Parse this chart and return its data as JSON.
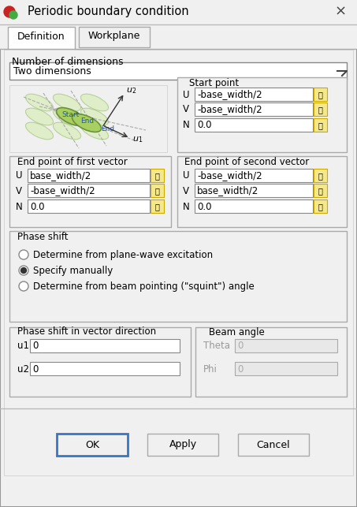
{
  "title": "Periodic boundary condition",
  "tab1": "Definition",
  "tab2": "Workplane",
  "dim_label": "Number of dimensions",
  "dim_value": "Two dimensions",
  "start_point_label": "Start point",
  "start_U": "-base_width/2",
  "start_V": "-base_width/2",
  "start_N": "0.0",
  "vec1_label": "End point of first vector",
  "vec1_U": "base_width/2",
  "vec1_V": "-base_width/2",
  "vec1_N": "0.0",
  "vec2_label": "End point of second vector",
  "vec2_U": "-base_width/2",
  "vec2_V": "base_width/2",
  "vec2_N": "0.0",
  "phase_label": "Phase shift",
  "radio1": "Determine from plane-wave excitation",
  "radio2": "Specify manually",
  "radio3": "Determine from beam pointing (\"squint\") angle",
  "phase_vec_label": "Phase shift in vector direction",
  "u1_val": "0",
  "u2_val": "0",
  "beam_label": "Beam angle",
  "theta_val": "0",
  "phi_val": "0",
  "theta_label": "Theta",
  "phi_label": "Phi",
  "u1_label": "u1",
  "u2_label": "u2",
  "U_label": "U",
  "V_label": "V",
  "N_label": "N",
  "ok_btn": "OK",
  "apply_btn": "Apply",
  "cancel_btn": "Cancel",
  "bg_color": "#f0f0f0",
  "dialog_bg": "#f0f0f0",
  "white": "#ffffff",
  "field_bg": "#ffffff",
  "disabled_field_bg": "#e8e8e8",
  "border_color": "#aaaaaa",
  "tab_bg": "#ffffff",
  "group_border": "#aaaaaa",
  "text_color": "#000000",
  "disabled_text": "#aaaaaa",
  "ok_border": "#3874c8",
  "title_bar_bg": "#f0f0f0",
  "close_color": "#444444"
}
